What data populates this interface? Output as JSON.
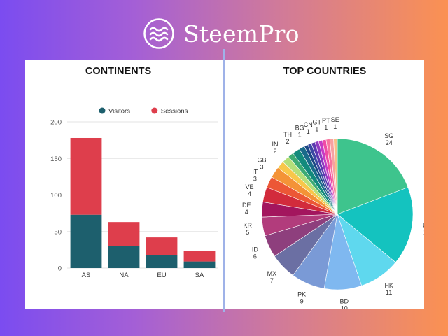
{
  "brand": {
    "name": "SteemPro",
    "logo_icon": "wave-logo-icon"
  },
  "colors": {
    "visitors": "#1d5f6d",
    "sessions": "#de3e4c"
  },
  "chart_data": [
    {
      "type": "bar",
      "stacked": true,
      "title": "CONTINENTS",
      "categories": [
        "AS",
        "NA",
        "EU",
        "SA"
      ],
      "series": [
        {
          "name": "Visitors",
          "color": "#1d5f6d",
          "values": [
            73,
            30,
            18,
            9
          ]
        },
        {
          "name": "Sessions",
          "color": "#de3e4c",
          "values": [
            105,
            33,
            24,
            14
          ]
        }
      ],
      "ylim": [
        0,
        200
      ],
      "yticks": [
        0,
        50,
        100,
        150,
        200
      ],
      "grid": true,
      "legend": "top"
    },
    {
      "type": "pie",
      "title": "TOP COUNTRIES",
      "slices": [
        {
          "label": "SG",
          "value": 24,
          "color": "#3ec48d"
        },
        {
          "label": "US",
          "value": 21,
          "color": "#14c3bf"
        },
        {
          "label": "HK",
          "value": 11,
          "color": "#5fd8ee"
        },
        {
          "label": "BD",
          "value": 10,
          "color": "#7fb8f0"
        },
        {
          "label": "PK",
          "value": 9,
          "color": "#7a9ad6"
        },
        {
          "label": "MX",
          "value": 7,
          "color": "#6b6fa3"
        },
        {
          "label": "ID",
          "value": 6,
          "color": "#8e3f7d"
        },
        {
          "label": "KR",
          "value": 5,
          "color": "#b23c7c"
        },
        {
          "label": "DE",
          "value": 4,
          "color": "#a3165e"
        },
        {
          "label": "VE",
          "value": 4,
          "color": "#d22b3c"
        },
        {
          "label": "IT",
          "value": 3,
          "color": "#ec5736"
        },
        {
          "label": "GB",
          "value": 3,
          "color": "#f49337"
        },
        {
          "label": "",
          "value": 2,
          "color": "#f8c74a"
        },
        {
          "label": "IN",
          "value": 2,
          "color": "#b4df7a"
        },
        {
          "label": "",
          "value": 1.5,
          "color": "#3dab74"
        },
        {
          "label": "TH",
          "value": 2,
          "color": "#138a7c"
        },
        {
          "label": "",
          "value": 1.5,
          "color": "#1a6b8a"
        },
        {
          "label": "BG",
          "value": 1,
          "color": "#1b4785"
        },
        {
          "label": "",
          "value": 1,
          "color": "#3b49a3"
        },
        {
          "label": "CN",
          "value": 1,
          "color": "#5b3ab0"
        },
        {
          "label": "",
          "value": 1,
          "color": "#8f3bc1"
        },
        {
          "label": "GT",
          "value": 1,
          "color": "#c63bc5"
        },
        {
          "label": "",
          "value": 1,
          "color": "#f04ba5"
        },
        {
          "label": "PT",
          "value": 1,
          "color": "#f7739e"
        },
        {
          "label": "",
          "value": 1,
          "color": "#f7a1a1"
        },
        {
          "label": "SE",
          "value": 1,
          "color": "#f6c089"
        }
      ]
    }
  ]
}
